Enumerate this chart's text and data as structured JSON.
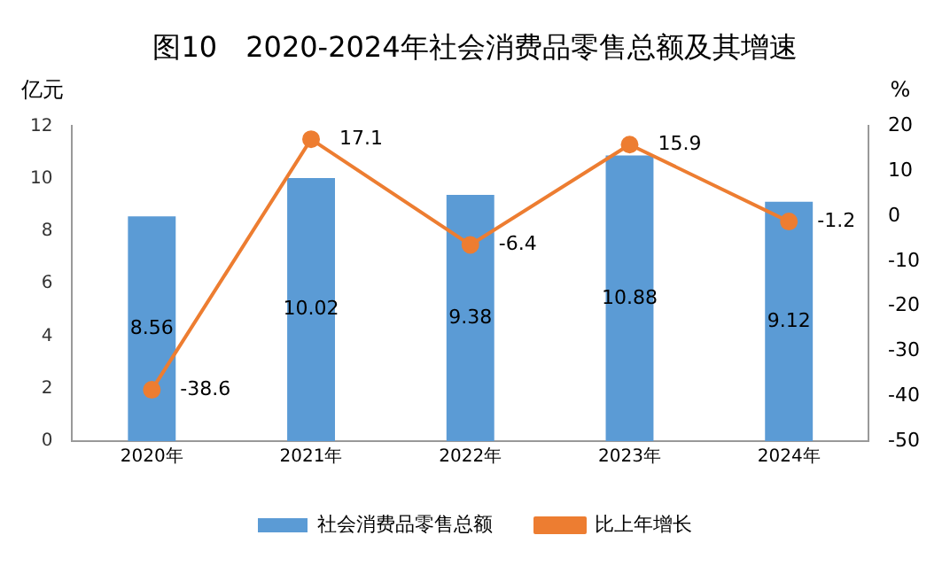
{
  "chart_data": {
    "type": "bar",
    "title": "图10　2020-2024年社会消费品零售总额及其增速",
    "ylabel": "亿元",
    "y2label": "%",
    "categories": [
      "2020年",
      "2021年",
      "2022年",
      "2023年",
      "2024年"
    ],
    "series": [
      {
        "name": "社会消费品零售总额",
        "color": "#5b9bd5",
        "values": [
          8.56,
          10.02,
          9.38,
          10.88,
          9.12
        ]
      },
      {
        "name": "比上年增长",
        "type": "line",
        "axis": "y2",
        "color": "#ed7d31",
        "values": [
          -38.6,
          17.1,
          -6.4,
          15.9,
          -1.2
        ]
      }
    ],
    "ylim": [
      0,
      12
    ],
    "yticks": [
      0,
      2,
      4,
      6,
      8,
      10,
      12
    ],
    "y2lim": [
      -50,
      20
    ],
    "y2ticks": [
      -50,
      -40,
      -30,
      -20,
      -10,
      0,
      10,
      20
    ],
    "data_labels": true,
    "grid": false,
    "legend": "bottom",
    "marker": "circle"
  }
}
